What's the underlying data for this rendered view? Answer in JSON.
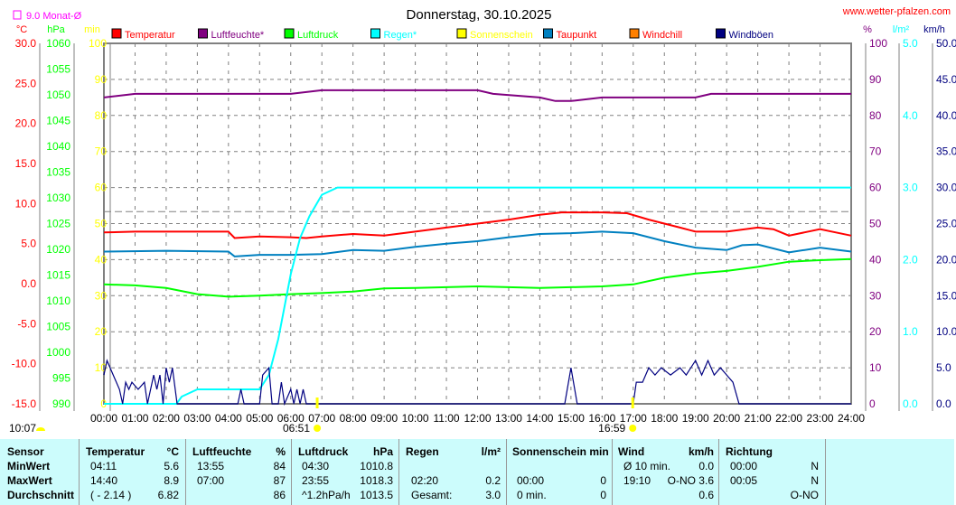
{
  "chart_data": {
    "type": "line",
    "title": "Donnerstag, 30.10.2025",
    "site": "www.wetter-pfalzen.com",
    "month_avg_label": "9.0 Monat-Ø",
    "month_avg_value": 9.0,
    "axes_left": [
      {
        "unit": "°C",
        "ticks": [
          "30.0",
          "25.0",
          "20.0",
          "15.0",
          "10.0",
          "5.0",
          "0.0",
          "-5.0",
          "-10.0",
          "-15.0"
        ],
        "range": [
          -15,
          30
        ],
        "color": "#ff0000"
      },
      {
        "unit": "hPa",
        "ticks": [
          "1060",
          "1055",
          "1050",
          "1045",
          "1040",
          "1035",
          "1030",
          "1025",
          "1020",
          "1015",
          "1010",
          "1005",
          "1000",
          "995",
          "990"
        ],
        "range": [
          990,
          1060
        ],
        "color": "#00ff00"
      },
      {
        "unit": "min",
        "ticks": [
          "100",
          "90",
          "80",
          "70",
          "60",
          "50",
          "40",
          "30",
          "20",
          "10",
          "0"
        ],
        "range": [
          0,
          100
        ],
        "color": "#ffff00"
      }
    ],
    "axes_right": [
      {
        "unit": "%",
        "ticks": [
          "100",
          "90",
          "80",
          "70",
          "60",
          "50",
          "40",
          "30",
          "20",
          "10",
          "0"
        ],
        "range": [
          0,
          100
        ],
        "color": "#800080"
      },
      {
        "unit": "l/m²",
        "ticks": [
          "5.0",
          "4.0",
          "3.0",
          "2.0",
          "1.0",
          "0.0"
        ],
        "range": [
          0,
          5
        ],
        "color": "#00ffff"
      },
      {
        "unit": "km/h",
        "ticks": [
          "50.0",
          "45.0",
          "40.0",
          "35.0",
          "30.0",
          "25.0",
          "20.0",
          "15.0",
          "10.0",
          "5.0",
          "0.0"
        ],
        "range": [
          0,
          50
        ],
        "color": "#000080"
      }
    ],
    "x_ticks": [
      "00:00",
      "01:00",
      "02:00",
      "03:00",
      "04:00",
      "05:00",
      "06:00",
      "07:00",
      "08:00",
      "09:00",
      "10:00",
      "11:00",
      "12:00",
      "13:00",
      "14:00",
      "15:00",
      "16:00",
      "17:00",
      "18:00",
      "19:00",
      "20:00",
      "21:00",
      "22:00",
      "23:00",
      "24:00"
    ],
    "sunrise": "06:51",
    "sunset": "16:59",
    "day_length": "10:07",
    "legend": [
      {
        "name": "Temperatur",
        "color": "#ff0000",
        "text": "#ff0000"
      },
      {
        "name": "Luftfeuchte*",
        "color": "#800080",
        "text": "#800080"
      },
      {
        "name": "Luftdruck",
        "color": "#00ff00",
        "text": "#00ff00"
      },
      {
        "name": "Regen*",
        "color": "#00ffff",
        "text": "#00ffff"
      },
      {
        "name": "Sonnenschein",
        "color": "#ffff00",
        "text": "#ffff00"
      },
      {
        "name": "Taupunkt",
        "color": "#0080c0",
        "text": "#ff0000"
      },
      {
        "name": "Windchill",
        "color": "#ff8000",
        "text": "#ff0000"
      },
      {
        "name": "Windböen",
        "color": "#000080",
        "text": "#000080"
      }
    ],
    "series": [
      {
        "name": "Luftfeuchte",
        "axis": "%",
        "color": "#800080",
        "points": [
          [
            0,
            85
          ],
          [
            1,
            86
          ],
          [
            4,
            86
          ],
          [
            6,
            86
          ],
          [
            7,
            87
          ],
          [
            12,
            87
          ],
          [
            12.5,
            86
          ],
          [
            14,
            85
          ],
          [
            14.5,
            84
          ],
          [
            15,
            84
          ],
          [
            16,
            85
          ],
          [
            19,
            85
          ],
          [
            19.5,
            86
          ],
          [
            24,
            86
          ]
        ]
      },
      {
        "name": "Temperatur",
        "axis": "°C",
        "color": "#ff0000",
        "points": [
          [
            0,
            6.4
          ],
          [
            1,
            6.5
          ],
          [
            4,
            6.5
          ],
          [
            4.2,
            5.7
          ],
          [
            5,
            5.9
          ],
          [
            6,
            5.8
          ],
          [
            6.5,
            5.7
          ],
          [
            7,
            5.9
          ],
          [
            8,
            6.2
          ],
          [
            9,
            6.0
          ],
          [
            10,
            6.5
          ],
          [
            11,
            7.0
          ],
          [
            12,
            7.5
          ],
          [
            13,
            8.0
          ],
          [
            14,
            8.6
          ],
          [
            14.7,
            8.9
          ],
          [
            16,
            8.9
          ],
          [
            16.8,
            8.8
          ],
          [
            17.5,
            8.0
          ],
          [
            18.5,
            7.0
          ],
          [
            19,
            6.5
          ],
          [
            20,
            6.5
          ],
          [
            21,
            7.0
          ],
          [
            21.5,
            6.8
          ],
          [
            22,
            6.0
          ],
          [
            23,
            6.8
          ],
          [
            24,
            6.0
          ]
        ]
      },
      {
        "name": "Taupunkt",
        "axis": "°C",
        "color": "#0080c0",
        "points": [
          [
            0,
            4.0
          ],
          [
            2,
            4.1
          ],
          [
            4,
            4.0
          ],
          [
            4.2,
            3.4
          ],
          [
            5,
            3.6
          ],
          [
            6,
            3.6
          ],
          [
            7,
            3.7
          ],
          [
            8,
            4.2
          ],
          [
            9,
            4.1
          ],
          [
            10,
            4.6
          ],
          [
            11,
            5.0
          ],
          [
            12,
            5.3
          ],
          [
            13,
            5.8
          ],
          [
            14,
            6.2
          ],
          [
            15,
            6.3
          ],
          [
            16,
            6.5
          ],
          [
            17,
            6.3
          ],
          [
            18,
            5.3
          ],
          [
            19,
            4.5
          ],
          [
            20,
            4.2
          ],
          [
            20.5,
            4.8
          ],
          [
            21,
            4.9
          ],
          [
            22,
            3.9
          ],
          [
            23,
            4.5
          ],
          [
            24,
            4.0
          ]
        ]
      },
      {
        "name": "Luftdruck",
        "axis": "hPa",
        "color": "#00ff00",
        "points": [
          [
            0,
            1013.2
          ],
          [
            1,
            1013
          ],
          [
            2,
            1012.5
          ],
          [
            3,
            1011.3
          ],
          [
            4,
            1010.8
          ],
          [
            5,
            1011
          ],
          [
            6,
            1011.3
          ],
          [
            7,
            1011.5
          ],
          [
            8,
            1011.8
          ],
          [
            9,
            1012.4
          ],
          [
            10,
            1012.5
          ],
          [
            12,
            1012.8
          ],
          [
            14,
            1012.5
          ],
          [
            16,
            1012.8
          ],
          [
            17,
            1013.2
          ],
          [
            18,
            1014.5
          ],
          [
            19,
            1015.3
          ],
          [
            20,
            1015.8
          ],
          [
            21,
            1016.6
          ],
          [
            22,
            1017.6
          ],
          [
            23,
            1017.9
          ],
          [
            24,
            1018.1
          ]
        ]
      },
      {
        "name": "Regen",
        "axis": "l/m²",
        "color": "#00ffff",
        "points": [
          [
            0,
            0
          ],
          [
            2.33,
            0
          ],
          [
            2.5,
            0.1
          ],
          [
            3,
            0.2
          ],
          [
            5,
            0.2
          ],
          [
            5.3,
            0.4
          ],
          [
            5.6,
            0.9
          ],
          [
            6,
            1.8
          ],
          [
            6.3,
            2.3
          ],
          [
            6.6,
            2.6
          ],
          [
            7,
            2.9
          ],
          [
            7.5,
            3.0
          ],
          [
            24,
            3.0
          ]
        ]
      },
      {
        "name": "Windböen",
        "axis": "km/h",
        "color": "#000080",
        "points": [
          [
            0,
            4
          ],
          [
            0.1,
            6
          ],
          [
            0.3,
            4
          ],
          [
            0.5,
            2
          ],
          [
            0.6,
            0
          ],
          [
            0.7,
            3
          ],
          [
            0.8,
            2
          ],
          [
            0.9,
            3
          ],
          [
            1.1,
            2
          ],
          [
            1.3,
            3
          ],
          [
            1.4,
            0
          ],
          [
            1.6,
            4
          ],
          [
            1.7,
            2
          ],
          [
            1.8,
            4
          ],
          [
            1.9,
            0
          ],
          [
            2.0,
            5
          ],
          [
            2.1,
            3
          ],
          [
            2.2,
            5
          ],
          [
            2.35,
            0
          ],
          [
            4.3,
            0
          ],
          [
            4.4,
            2
          ],
          [
            4.5,
            0
          ],
          [
            5,
            0
          ],
          [
            5.1,
            4
          ],
          [
            5.3,
            5
          ],
          [
            5.4,
            0
          ],
          [
            5.6,
            0
          ],
          [
            5.7,
            3
          ],
          [
            5.8,
            0
          ],
          [
            6.0,
            2
          ],
          [
            6.1,
            0
          ],
          [
            6.2,
            2
          ],
          [
            6.3,
            0
          ],
          [
            6.4,
            2
          ],
          [
            6.5,
            0
          ],
          [
            14.8,
            0
          ],
          [
            15,
            5
          ],
          [
            15.2,
            0
          ],
          [
            17,
            0
          ],
          [
            17.1,
            3
          ],
          [
            17.3,
            3
          ],
          [
            17.5,
            5
          ],
          [
            17.7,
            4
          ],
          [
            17.9,
            5
          ],
          [
            18.2,
            4
          ],
          [
            18.5,
            5
          ],
          [
            18.7,
            4
          ],
          [
            19,
            6
          ],
          [
            19.2,
            4
          ],
          [
            19.4,
            6
          ],
          [
            19.6,
            4
          ],
          [
            19.8,
            5
          ],
          [
            20,
            4
          ],
          [
            20.2,
            3
          ],
          [
            20.4,
            0
          ],
          [
            24,
            0
          ]
        ]
      }
    ]
  },
  "table": {
    "headers": {
      "sensor": "Sensor",
      "temp": "Temperatur",
      "temp_u": "°C",
      "hum": "Luftfeuchte",
      "hum_u": "%",
      "press": "Luftdruck",
      "press_u": "hPa",
      "rain": "Regen",
      "rain_u": "l/m²",
      "sun": "Sonnenschein min",
      "wind": "Wind",
      "wind_u": "km/h",
      "dir": "Richtung"
    },
    "rows": [
      {
        "label": "MinWert",
        "t_time": "04:11",
        "t_val": "5.6",
        "h_time": "13:55",
        "h_val": "84",
        "p_time": "04:30",
        "p_val": "1010.8",
        "r_time": "",
        "r_val": "",
        "s_time": "",
        "s_val": "",
        "w_time": "Ø 10 min.",
        "w_val": "0.0",
        "d_time": "00:00",
        "d_val": "N"
      },
      {
        "label": "MaxWert",
        "t_time": "14:40",
        "t_val": "8.9",
        "h_time": "07:00",
        "h_val": "87",
        "p_time": "23:55",
        "p_val": "1018.3",
        "r_time": "02:20",
        "r_val": "0.2",
        "s_time": "00:00",
        "s_val": "0",
        "w_time": "19:10",
        "w_val": "O-NO 3.6",
        "d_time": "00:05",
        "d_val": "N"
      },
      {
        "label": "Durchschnitt",
        "t_time": "( - 2.14 )",
        "t_val": "6.82",
        "h_time": "",
        "h_val": "86",
        "p_time": "^1.2hPa/h",
        "p_val": "1013.5",
        "r_time": "Gesamt:",
        "r_val": "3.0",
        "s_time": "0 min.",
        "s_val": "0",
        "w_time": "",
        "w_val": "0.6",
        "d_time": "",
        "d_val": "O-NO"
      }
    ]
  }
}
